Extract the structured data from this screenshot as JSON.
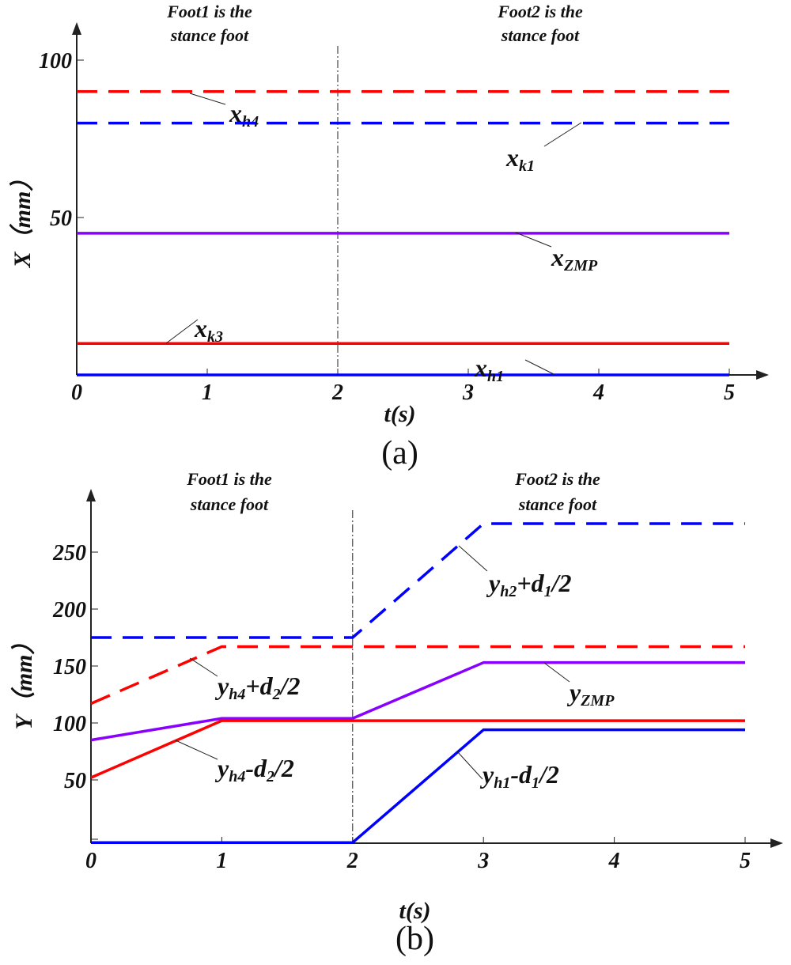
{
  "chart_data": [
    {
      "type": "line",
      "caption": "(a)",
      "xlabel": "t(s)",
      "ylabel": "X（mm）",
      "xlim": [
        0,
        5
      ],
      "ylim": [
        0,
        100
      ],
      "xticks": [
        "0",
        "1",
        "2",
        "3",
        "4",
        "5"
      ],
      "yticks": [
        "50",
        "100"
      ],
      "divider_t": 2,
      "phase_labels": [
        [
          "Foot1 is the",
          "stance foot"
        ],
        [
          "Foot2 is the",
          "stance foot"
        ]
      ],
      "series": [
        {
          "name": "x_h4",
          "label": [
            {
              "t": "x"
            },
            {
              "t": "h4",
              "sub": true
            }
          ],
          "color": "#ff0000",
          "dash": true,
          "x": [
            0,
            5
          ],
          "y": [
            90,
            90
          ]
        },
        {
          "name": "x_k1",
          "label": [
            {
              "t": "x"
            },
            {
              "t": "k1",
              "sub": true
            }
          ],
          "color": "#0000ff",
          "dash": true,
          "x": [
            0,
            5
          ],
          "y": [
            80,
            80
          ]
        },
        {
          "name": "x_ZMP",
          "label": [
            {
              "t": "x"
            },
            {
              "t": "ZMP",
              "sub": true
            }
          ],
          "color": "#8800ff",
          "dash": false,
          "x": [
            0,
            5
          ],
          "y": [
            45,
            45
          ]
        },
        {
          "name": "x_k3",
          "label": [
            {
              "t": "x"
            },
            {
              "t": "k3",
              "sub": true
            }
          ],
          "color": "#ff0000",
          "dash": false,
          "x": [
            0,
            5
          ],
          "y": [
            10,
            10
          ]
        },
        {
          "name": "x_h1",
          "label": [
            {
              "t": "x"
            },
            {
              "t": "h1",
              "sub": true
            }
          ],
          "color": "#0000ff",
          "dash": false,
          "x": [
            0,
            5
          ],
          "y": [
            0,
            0
          ]
        }
      ]
    },
    {
      "type": "line",
      "caption": "(b)",
      "xlabel": "t(s)",
      "ylabel": "Y（mm）",
      "xlim": [
        0,
        5
      ],
      "ylim": [
        -5,
        290
      ],
      "xticks": [
        "0",
        "1",
        "2",
        "3",
        "4",
        "5"
      ],
      "yticks": [
        "50",
        "100",
        "150",
        "200",
        "250"
      ],
      "divider_t": 2,
      "phase_labels": [
        [
          "Foot1 is the",
          "stance foot"
        ],
        [
          "Foot2 is the",
          "stance foot"
        ]
      ],
      "series": [
        {
          "name": "y_h2+d1/2",
          "label": [
            {
              "t": "y"
            },
            {
              "t": "h2",
              "sub": true
            },
            {
              "t": "+d"
            },
            {
              "t": "1",
              "sub": true
            },
            {
              "t": "/2"
            }
          ],
          "color": "#0000ff",
          "dash": true,
          "x": [
            0,
            2,
            3,
            5
          ],
          "y": [
            175,
            175,
            275,
            275
          ]
        },
        {
          "name": "y_h4+d2/2",
          "label": [
            {
              "t": "y"
            },
            {
              "t": "h4",
              "sub": true
            },
            {
              "t": "+d"
            },
            {
              "t": "2",
              "sub": true
            },
            {
              "t": "/2"
            }
          ],
          "color": "#ff0000",
          "dash": true,
          "x": [
            0,
            1,
            5
          ],
          "y": [
            117,
            167,
            167
          ]
        },
        {
          "name": "y_ZMP",
          "label": [
            {
              "t": "y"
            },
            {
              "t": "ZMP",
              "sub": true
            }
          ],
          "color": "#8800ff",
          "dash": false,
          "x": [
            0,
            1,
            2,
            3,
            5
          ],
          "y": [
            85,
            104,
            104,
            153,
            153
          ]
        },
        {
          "name": "y_h4-d2/2",
          "label": [
            {
              "t": "y"
            },
            {
              "t": "h4",
              "sub": true
            },
            {
              "t": "-d"
            },
            {
              "t": "2",
              "sub": true
            },
            {
              "t": "/2"
            }
          ],
          "color": "#ff0000",
          "dash": false,
          "x": [
            0,
            1,
            5
          ],
          "y": [
            52,
            102,
            102
          ]
        },
        {
          "name": "y_h1-d1/2",
          "label": [
            {
              "t": "y"
            },
            {
              "t": "h1",
              "sub": true
            },
            {
              "t": "-d"
            },
            {
              "t": "1",
              "sub": true
            },
            {
              "t": "/2"
            }
          ],
          "color": "#0000ff",
          "dash": false,
          "x": [
            0,
            2,
            3,
            5
          ],
          "y": [
            -5,
            -5,
            94,
            94
          ]
        }
      ]
    }
  ]
}
